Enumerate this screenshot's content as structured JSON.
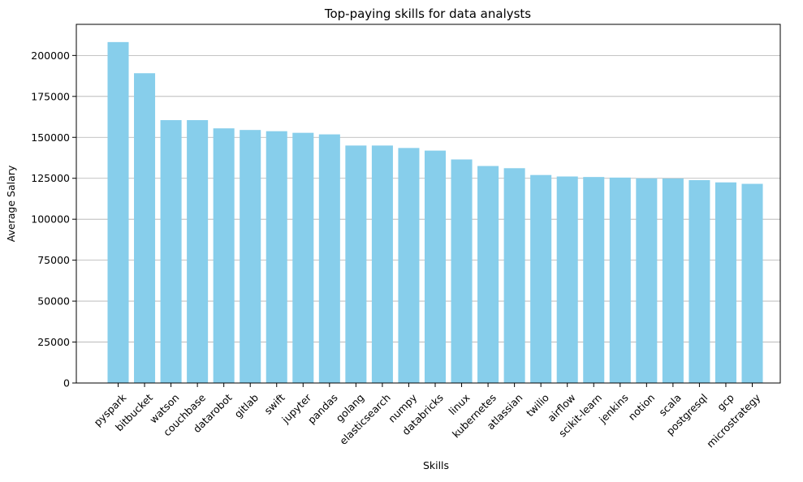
{
  "chart_data": {
    "type": "bar",
    "title": "Top-paying skills for data analysts",
    "xlabel": "Skills",
    "ylabel": "Average Salary",
    "categories": [
      "pyspark",
      "bitbucket",
      "watson",
      "couchbase",
      "datarobot",
      "gitlab",
      "swift",
      "jupyter",
      "pandas",
      "golang",
      "elasticsearch",
      "numpy",
      "databricks",
      "linux",
      "kubernetes",
      "atlassian",
      "twilio",
      "airflow",
      "scikit-learn",
      "jenkins",
      "notion",
      "scala",
      "postgresql",
      "gcp",
      "microstrategy"
    ],
    "values": [
      208172,
      189155,
      160515,
      160515,
      155486,
      154500,
      153750,
      152777,
      151821,
      145000,
      145000,
      143513,
      141907,
      136508,
      132500,
      131162,
      127000,
      126103,
      125781,
      125436,
      125000,
      124903,
      123879,
      122500,
      121619
    ],
    "ylim": [
      0,
      219000
    ],
    "yticks": [
      0,
      25000,
      50000,
      75000,
      100000,
      125000,
      150000,
      175000,
      200000
    ],
    "grid": "y",
    "bar_color": "#87ceeb",
    "legend": "none"
  }
}
